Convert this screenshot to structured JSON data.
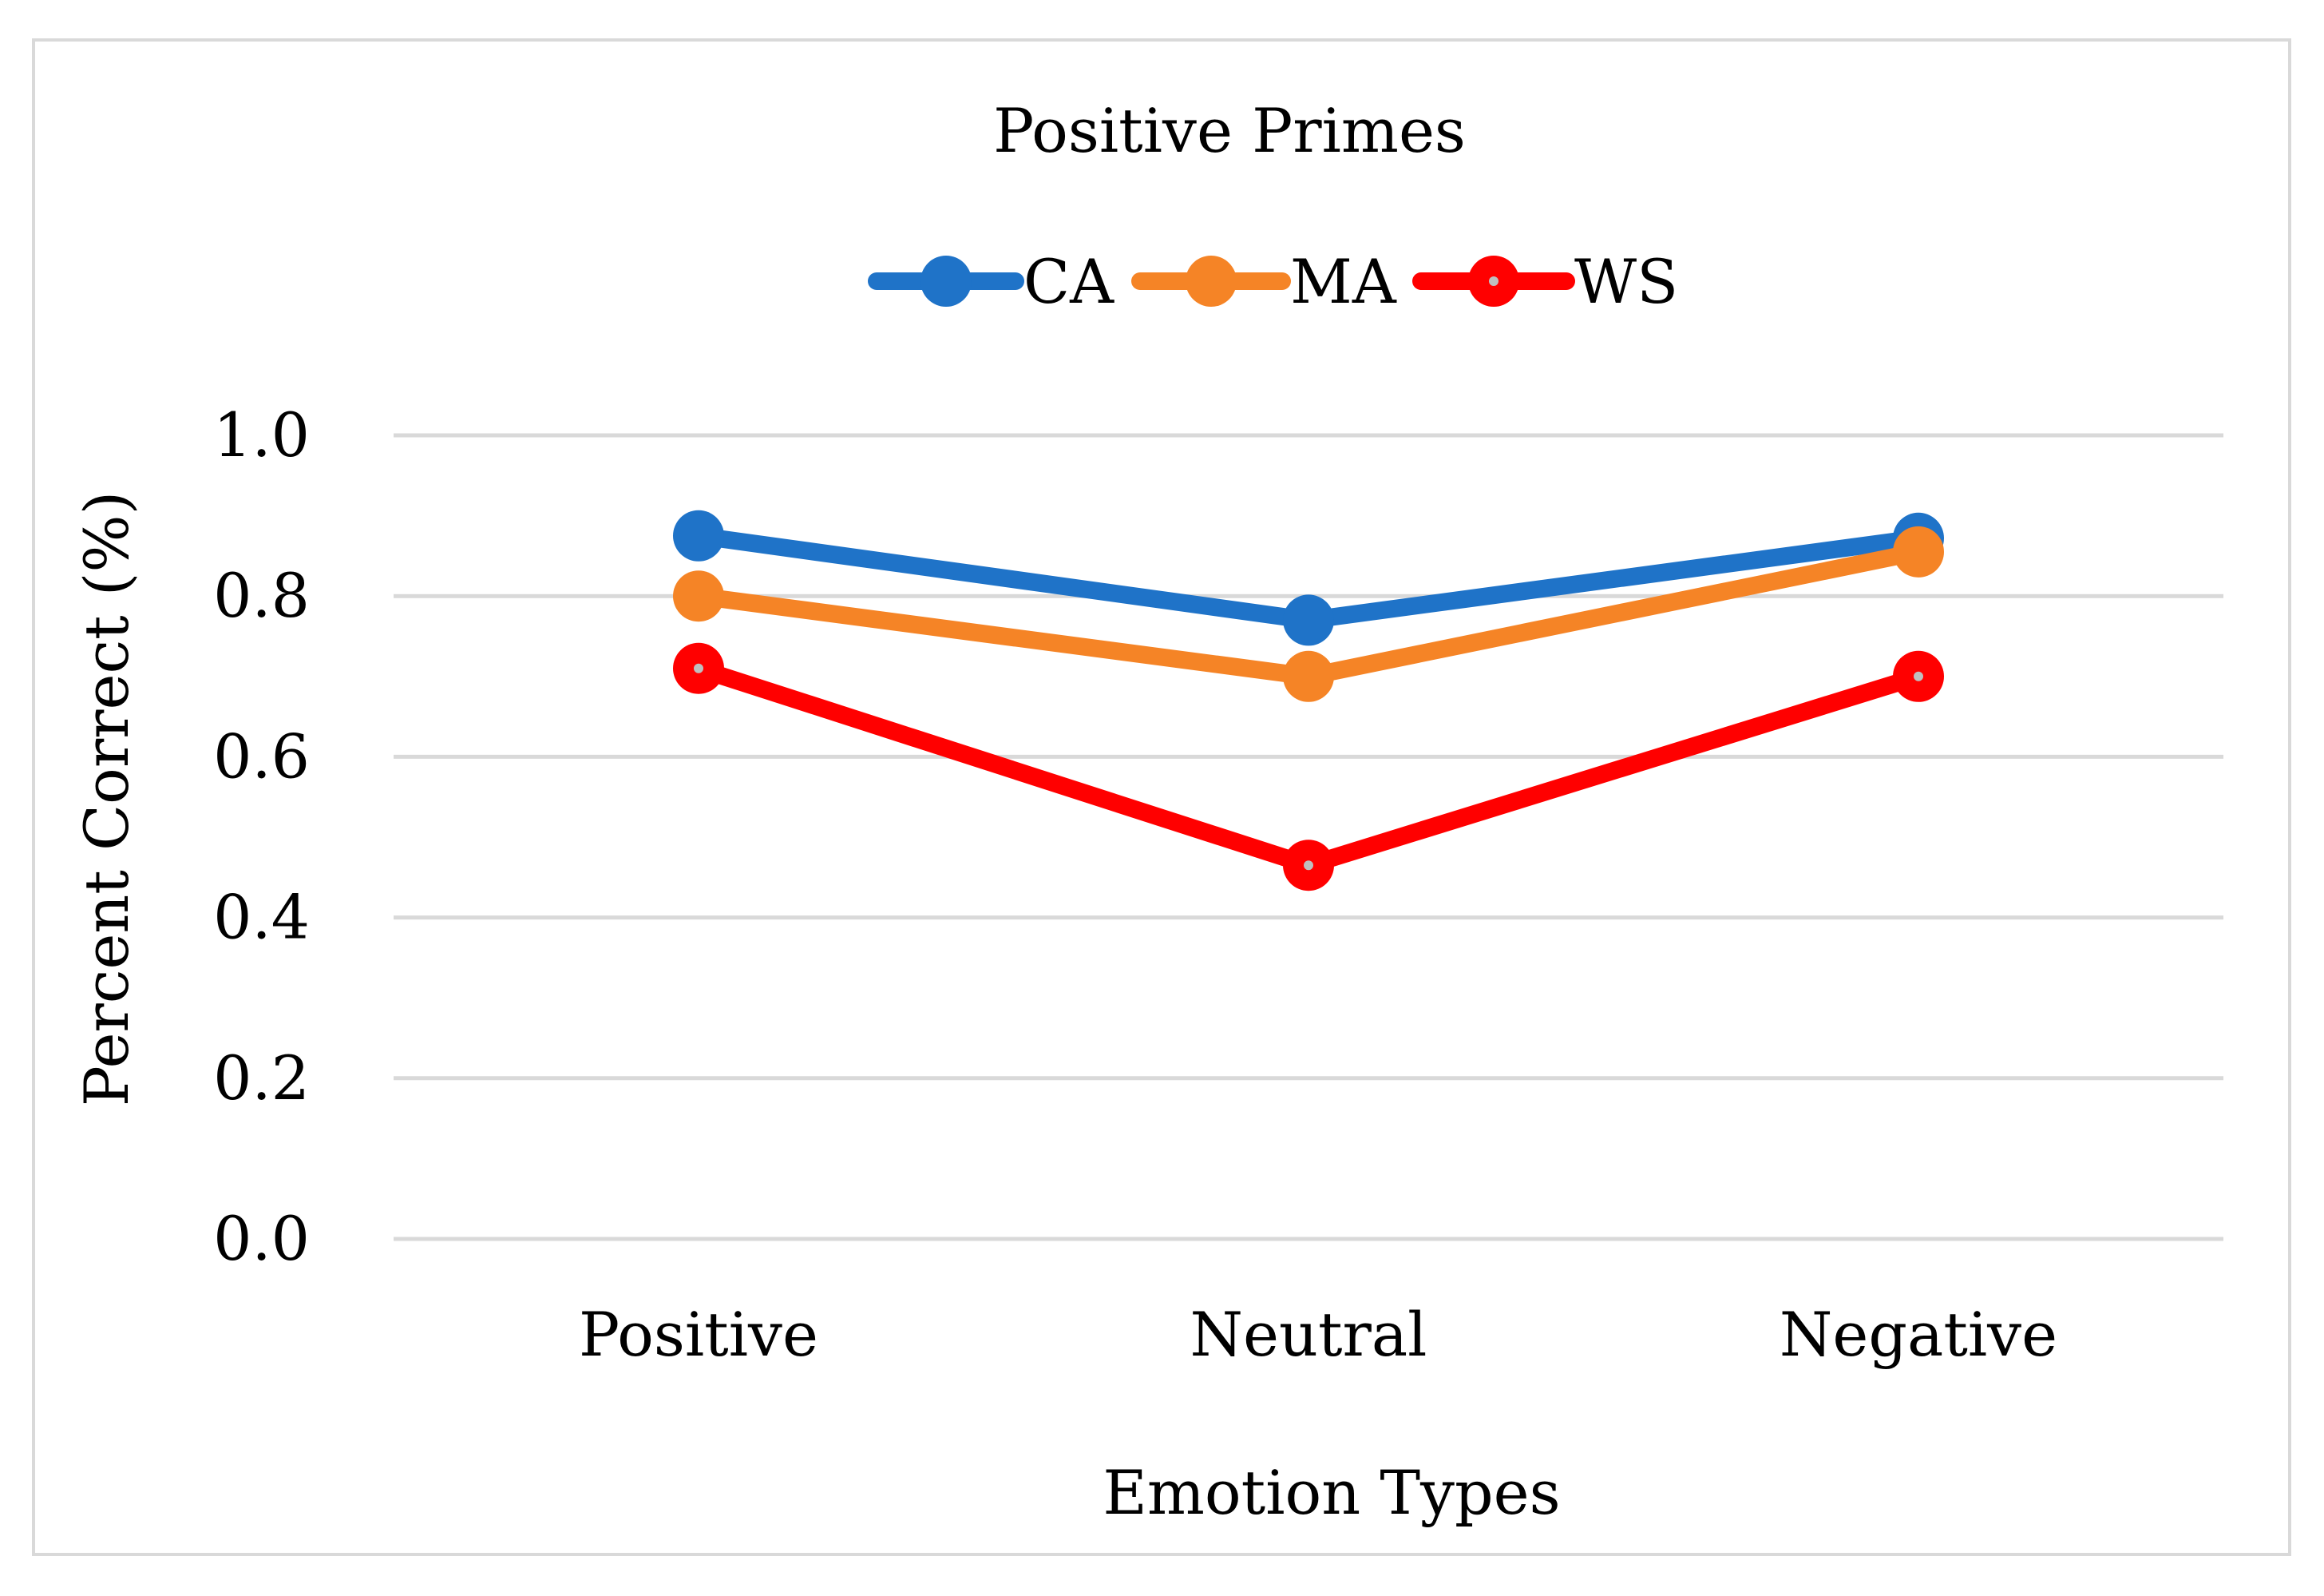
{
  "chart_data": {
    "type": "line",
    "title": "Positive Primes",
    "xlabel": "Emotion Types",
    "ylabel": "Percent Correct (%)",
    "categories": [
      "Positive",
      "Neutral",
      "Negative"
    ],
    "ylim": [
      0,
      1.0
    ],
    "yticks": [
      "0.0",
      "0.2",
      "0.4",
      "0.6",
      "0.8",
      "1.0"
    ],
    "grid": true,
    "legend_position": "top",
    "series": [
      {
        "name": "CA",
        "values": [
          0.875,
          0.77,
          0.872
        ],
        "color": "#1f73c8",
        "marker": "filled"
      },
      {
        "name": "MA",
        "values": [
          0.8,
          0.7,
          0.855
        ],
        "color": "#f58426",
        "marker": "filled"
      },
      {
        "name": "WS",
        "values": [
          0.71,
          0.465,
          0.7
        ],
        "color": "#ff0000",
        "marker": "hollow-dot"
      }
    ]
  }
}
